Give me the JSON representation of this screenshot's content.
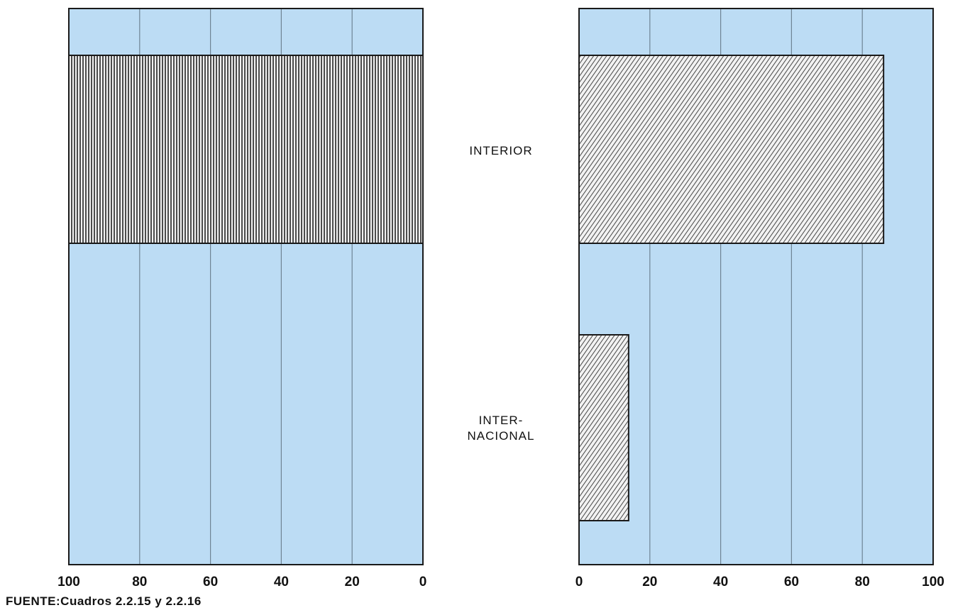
{
  "colors": {
    "panel_bg": "#bcdcf4",
    "gridline": "#6f8494",
    "border": "#1a1a1a",
    "bar_fill": "#f2f2f2",
    "hatch": "#222222"
  },
  "source_note": "FUENTE:Cuadros 2.2.15 y 2.2.16",
  "chart_data": [
    {
      "type": "bar",
      "orientation": "horizontal",
      "direction": "right-to-left",
      "categories": [
        "INTERIOR",
        "INTER-NACIONAL"
      ],
      "values": [
        100,
        0
      ],
      "xlim": [
        0,
        100
      ],
      "ticks": [
        "100",
        "80",
        "60",
        "40",
        "20",
        "0"
      ],
      "tick_values": [
        100,
        80,
        60,
        40,
        20,
        0
      ],
      "grid": true,
      "pattern": "vertical-hatch"
    },
    {
      "type": "bar",
      "orientation": "horizontal",
      "direction": "left-to-right",
      "categories": [
        "INTERIOR",
        "INTER-NACIONAL"
      ],
      "values": [
        86,
        14
      ],
      "xlim": [
        0,
        100
      ],
      "ticks": [
        "0",
        "20",
        "40",
        "60",
        "80",
        "100"
      ],
      "tick_values": [
        0,
        20,
        40,
        60,
        80,
        100
      ],
      "grid": true,
      "pattern": "diagonal-hatch"
    }
  ],
  "category_labels": [
    {
      "lines": [
        "INTERIOR"
      ]
    },
    {
      "lines": [
        "INTER-",
        "NACIONAL"
      ]
    }
  ]
}
